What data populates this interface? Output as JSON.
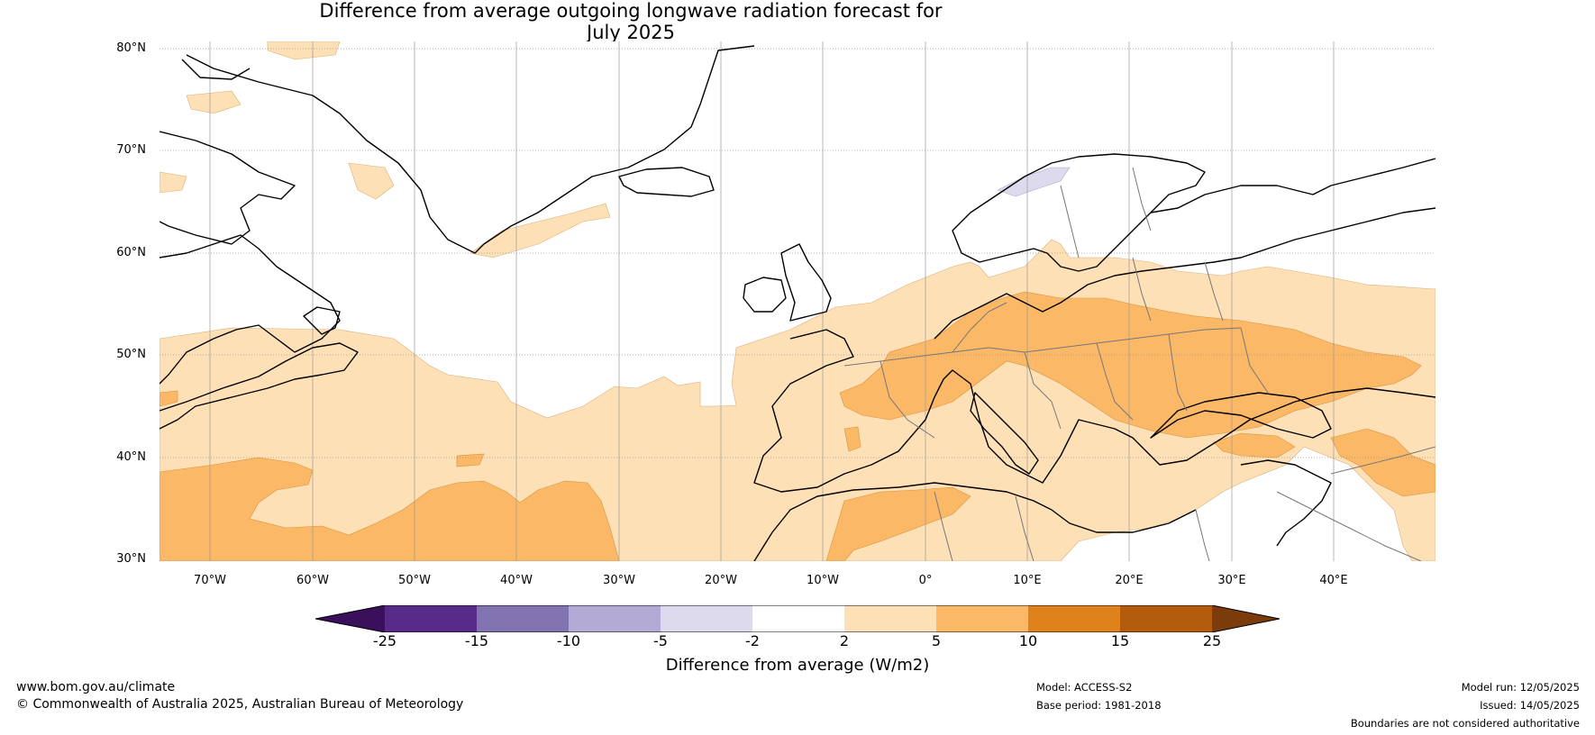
{
  "title_line1": "Difference from average outgoing longwave radiation forecast for",
  "title_line2": "July 2025",
  "map": {
    "lat_labels": [
      "80°N",
      "70°N",
      "60°N",
      "50°N",
      "40°N",
      "30°N"
    ],
    "lon_labels": [
      "70°W",
      "60°W",
      "50°W",
      "40°W",
      "30°W",
      "20°W",
      "10°W",
      "0°",
      "10°E",
      "20°E",
      "30°E",
      "40°E"
    ],
    "extent": {
      "lon_min": -75,
      "lon_max": 50,
      "lat_min": 30,
      "lat_max": 81
    }
  },
  "colorbar": {
    "ticks": [
      "-25",
      "-15",
      "-10",
      "-5",
      "-2",
      "2",
      "5",
      "10",
      "15",
      "25"
    ],
    "colors": [
      "#3a0f5c",
      "#582b8a",
      "#8174b0",
      "#b3aad5",
      "#dcdaec",
      "#ffffff",
      "#fde0b6",
      "#fbb867",
      "#e0821c",
      "#b35c0d",
      "#7b3b0a"
    ],
    "label": "Difference from average (W/m2)"
  },
  "footer": {
    "website": "www.bom.gov.au/climate",
    "copyright": "© Commonwealth of Australia 2025, Australian Bureau of Meteorology",
    "model": "Model: ACCESS-S2",
    "base_period": "Base period: 1981-2018",
    "model_run": "Model run: 12/05/2025",
    "issued": "Issued: 14/05/2025",
    "disclaimer": "Boundaries are not considered authoritative"
  }
}
